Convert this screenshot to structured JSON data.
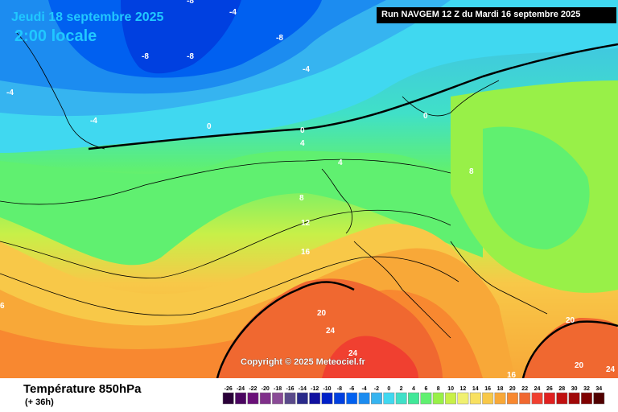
{
  "header": {
    "date": "Jeudi 18 septembre 2025",
    "time": "2:00 locale",
    "run": "Run NAVGEM 12 Z du Mardi 16 septembre 2025"
  },
  "footer": {
    "title": "Température 850hPa",
    "subtitle": "(+ 36h)",
    "copyright": "Copyright © 2025 Meteociel.fr"
  },
  "legend": {
    "values": [
      "-26",
      "-24",
      "-22",
      "-20",
      "-18",
      "-16",
      "-14",
      "-12",
      "-10",
      "-8",
      "-6",
      "-4",
      "-2",
      "0",
      "2",
      "4",
      "6",
      "8",
      "10",
      "12",
      "14",
      "16",
      "18",
      "20",
      "22",
      "24",
      "26",
      "28",
      "30",
      "32",
      "34"
    ],
    "colors": [
      "#2a0038",
      "#4a0560",
      "#6a1078",
      "#80308a",
      "#8a4a96",
      "#5a4a8a",
      "#2a2a8a",
      "#1010a0",
      "#0020c8",
      "#0040e0",
      "#0060f0",
      "#1c8cf0",
      "#36b4f0",
      "#40d8f0",
      "#40e0c8",
      "#40e898",
      "#60f070",
      "#98f048",
      "#c8f048",
      "#f0f070",
      "#f8e060",
      "#f8c848",
      "#f8a838",
      "#f88830",
      "#f06830",
      "#f04030",
      "#e02020",
      "#c01010",
      "#a00808",
      "#800000",
      "#500000"
    ]
  },
  "contour_labels": [
    "-8",
    "-8",
    "-8",
    "-8",
    "-4",
    "-4",
    "-4",
    "-4",
    "0",
    "0",
    "0",
    "4",
    "4",
    "8",
    "8",
    "12",
    "16",
    "20",
    "24",
    "24",
    "20",
    "20",
    "16",
    "24",
    "6"
  ]
}
